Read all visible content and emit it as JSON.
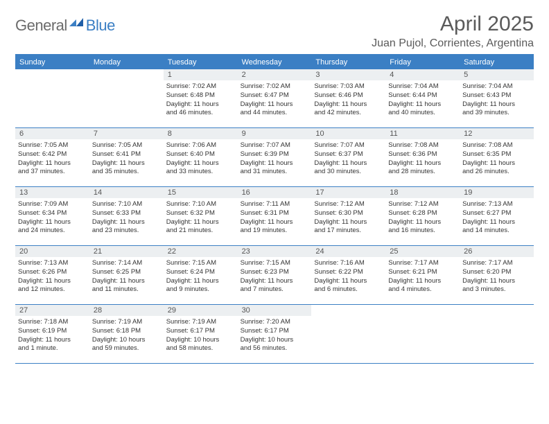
{
  "logo": {
    "general": "General",
    "blue": "Blue"
  },
  "title": "April 2025",
  "location": "Juan Pujol, Corrientes, Argentina",
  "colors": {
    "accent": "#3b7fc4",
    "header_text": "#ffffff",
    "daynum_bg": "#eceff1",
    "body_text": "#333333",
    "title_text": "#5a5a5a"
  },
  "daynames": [
    "Sunday",
    "Monday",
    "Tuesday",
    "Wednesday",
    "Thursday",
    "Friday",
    "Saturday"
  ],
  "weeks": [
    [
      null,
      null,
      {
        "n": "1",
        "sr": "Sunrise: 7:02 AM",
        "ss": "Sunset: 6:48 PM",
        "d1": "Daylight: 11 hours",
        "d2": "and 46 minutes."
      },
      {
        "n": "2",
        "sr": "Sunrise: 7:02 AM",
        "ss": "Sunset: 6:47 PM",
        "d1": "Daylight: 11 hours",
        "d2": "and 44 minutes."
      },
      {
        "n": "3",
        "sr": "Sunrise: 7:03 AM",
        "ss": "Sunset: 6:46 PM",
        "d1": "Daylight: 11 hours",
        "d2": "and 42 minutes."
      },
      {
        "n": "4",
        "sr": "Sunrise: 7:04 AM",
        "ss": "Sunset: 6:44 PM",
        "d1": "Daylight: 11 hours",
        "d2": "and 40 minutes."
      },
      {
        "n": "5",
        "sr": "Sunrise: 7:04 AM",
        "ss": "Sunset: 6:43 PM",
        "d1": "Daylight: 11 hours",
        "d2": "and 39 minutes."
      }
    ],
    [
      {
        "n": "6",
        "sr": "Sunrise: 7:05 AM",
        "ss": "Sunset: 6:42 PM",
        "d1": "Daylight: 11 hours",
        "d2": "and 37 minutes."
      },
      {
        "n": "7",
        "sr": "Sunrise: 7:05 AM",
        "ss": "Sunset: 6:41 PM",
        "d1": "Daylight: 11 hours",
        "d2": "and 35 minutes."
      },
      {
        "n": "8",
        "sr": "Sunrise: 7:06 AM",
        "ss": "Sunset: 6:40 PM",
        "d1": "Daylight: 11 hours",
        "d2": "and 33 minutes."
      },
      {
        "n": "9",
        "sr": "Sunrise: 7:07 AM",
        "ss": "Sunset: 6:39 PM",
        "d1": "Daylight: 11 hours",
        "d2": "and 31 minutes."
      },
      {
        "n": "10",
        "sr": "Sunrise: 7:07 AM",
        "ss": "Sunset: 6:37 PM",
        "d1": "Daylight: 11 hours",
        "d2": "and 30 minutes."
      },
      {
        "n": "11",
        "sr": "Sunrise: 7:08 AM",
        "ss": "Sunset: 6:36 PM",
        "d1": "Daylight: 11 hours",
        "d2": "and 28 minutes."
      },
      {
        "n": "12",
        "sr": "Sunrise: 7:08 AM",
        "ss": "Sunset: 6:35 PM",
        "d1": "Daylight: 11 hours",
        "d2": "and 26 minutes."
      }
    ],
    [
      {
        "n": "13",
        "sr": "Sunrise: 7:09 AM",
        "ss": "Sunset: 6:34 PM",
        "d1": "Daylight: 11 hours",
        "d2": "and 24 minutes."
      },
      {
        "n": "14",
        "sr": "Sunrise: 7:10 AM",
        "ss": "Sunset: 6:33 PM",
        "d1": "Daylight: 11 hours",
        "d2": "and 23 minutes."
      },
      {
        "n": "15",
        "sr": "Sunrise: 7:10 AM",
        "ss": "Sunset: 6:32 PM",
        "d1": "Daylight: 11 hours",
        "d2": "and 21 minutes."
      },
      {
        "n": "16",
        "sr": "Sunrise: 7:11 AM",
        "ss": "Sunset: 6:31 PM",
        "d1": "Daylight: 11 hours",
        "d2": "and 19 minutes."
      },
      {
        "n": "17",
        "sr": "Sunrise: 7:12 AM",
        "ss": "Sunset: 6:30 PM",
        "d1": "Daylight: 11 hours",
        "d2": "and 17 minutes."
      },
      {
        "n": "18",
        "sr": "Sunrise: 7:12 AM",
        "ss": "Sunset: 6:28 PM",
        "d1": "Daylight: 11 hours",
        "d2": "and 16 minutes."
      },
      {
        "n": "19",
        "sr": "Sunrise: 7:13 AM",
        "ss": "Sunset: 6:27 PM",
        "d1": "Daylight: 11 hours",
        "d2": "and 14 minutes."
      }
    ],
    [
      {
        "n": "20",
        "sr": "Sunrise: 7:13 AM",
        "ss": "Sunset: 6:26 PM",
        "d1": "Daylight: 11 hours",
        "d2": "and 12 minutes."
      },
      {
        "n": "21",
        "sr": "Sunrise: 7:14 AM",
        "ss": "Sunset: 6:25 PM",
        "d1": "Daylight: 11 hours",
        "d2": "and 11 minutes."
      },
      {
        "n": "22",
        "sr": "Sunrise: 7:15 AM",
        "ss": "Sunset: 6:24 PM",
        "d1": "Daylight: 11 hours",
        "d2": "and 9 minutes."
      },
      {
        "n": "23",
        "sr": "Sunrise: 7:15 AM",
        "ss": "Sunset: 6:23 PM",
        "d1": "Daylight: 11 hours",
        "d2": "and 7 minutes."
      },
      {
        "n": "24",
        "sr": "Sunrise: 7:16 AM",
        "ss": "Sunset: 6:22 PM",
        "d1": "Daylight: 11 hours",
        "d2": "and 6 minutes."
      },
      {
        "n": "25",
        "sr": "Sunrise: 7:17 AM",
        "ss": "Sunset: 6:21 PM",
        "d1": "Daylight: 11 hours",
        "d2": "and 4 minutes."
      },
      {
        "n": "26",
        "sr": "Sunrise: 7:17 AM",
        "ss": "Sunset: 6:20 PM",
        "d1": "Daylight: 11 hours",
        "d2": "and 3 minutes."
      }
    ],
    [
      {
        "n": "27",
        "sr": "Sunrise: 7:18 AM",
        "ss": "Sunset: 6:19 PM",
        "d1": "Daylight: 11 hours",
        "d2": "and 1 minute."
      },
      {
        "n": "28",
        "sr": "Sunrise: 7:19 AM",
        "ss": "Sunset: 6:18 PM",
        "d1": "Daylight: 10 hours",
        "d2": "and 59 minutes."
      },
      {
        "n": "29",
        "sr": "Sunrise: 7:19 AM",
        "ss": "Sunset: 6:17 PM",
        "d1": "Daylight: 10 hours",
        "d2": "and 58 minutes."
      },
      {
        "n": "30",
        "sr": "Sunrise: 7:20 AM",
        "ss": "Sunset: 6:17 PM",
        "d1": "Daylight: 10 hours",
        "d2": "and 56 minutes."
      },
      null,
      null,
      null
    ]
  ]
}
